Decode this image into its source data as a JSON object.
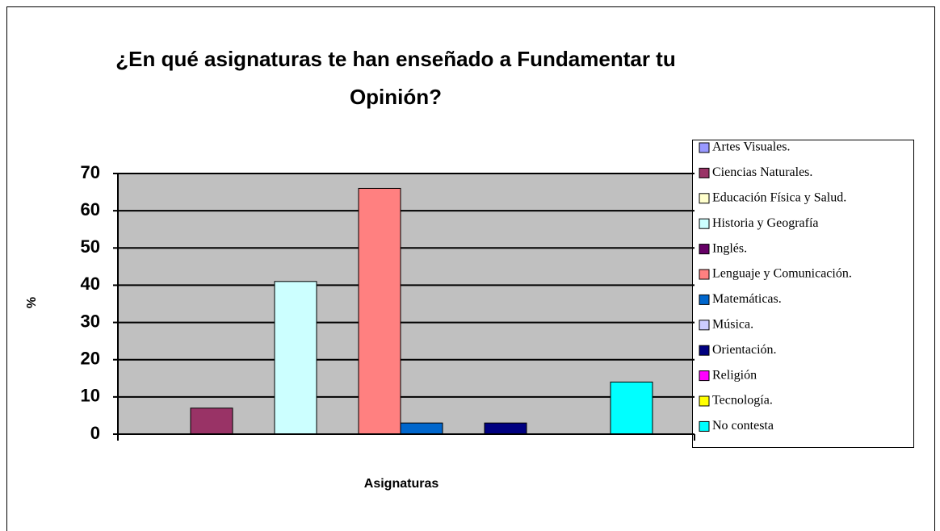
{
  "chart_data": {
    "type": "bar",
    "title": "¿En qué asignaturas te han enseñado a Fundamentar tu Opinión?",
    "x_label": "Asignaturas",
    "y_label": "%",
    "series": [
      {
        "name": "Artes Visuales.",
        "color": "#9999ff",
        "values": [
          0
        ]
      },
      {
        "name": "Ciencias Naturales.",
        "color": "#993366",
        "values": [
          7
        ]
      },
      {
        "name": "Educación Física y Salud.",
        "color": "#ffffcc",
        "values": [
          0
        ]
      },
      {
        "name": "Historia y Geografía",
        "color": "#ccffff",
        "values": [
          41
        ]
      },
      {
        "name": "Inglés.",
        "color": "#660066",
        "values": [
          0
        ]
      },
      {
        "name": "Lenguaje y Comunicación.",
        "color": "#ff8080",
        "values": [
          66
        ]
      },
      {
        "name": "Matemáticas.",
        "color": "#0066cc",
        "values": [
          3
        ]
      },
      {
        "name": "Música.",
        "color": "#ccccff",
        "values": [
          0
        ]
      },
      {
        "name": "Orientación.",
        "color": "#000080",
        "values": [
          3
        ]
      },
      {
        "name": "Religión",
        "color": "#ff00ff",
        "values": [
          0
        ]
      },
      {
        "name": "Tecnología.",
        "color": "#ffff00",
        "values": [
          0
        ]
      },
      {
        "name": "No contesta",
        "color": "#00ffff",
        "values": [
          14
        ]
      }
    ],
    "ylim": [
      0,
      70
    ],
    "yticks": [
      0,
      10,
      20,
      30,
      40,
      50,
      60,
      70
    ],
    "grid": true,
    "legend": "right"
  }
}
